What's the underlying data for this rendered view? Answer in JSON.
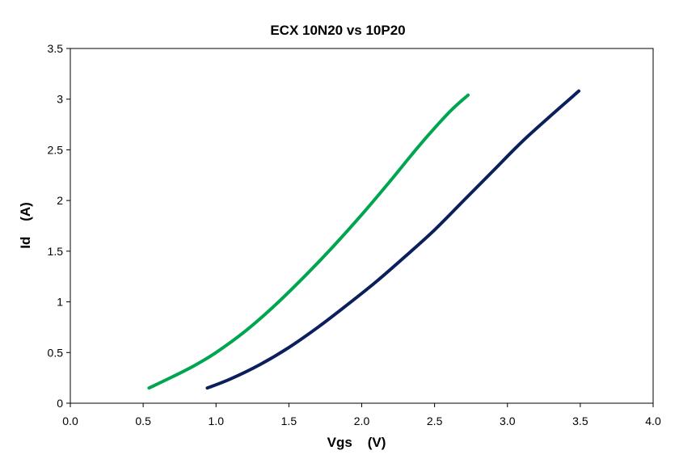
{
  "chart_data": {
    "type": "line",
    "title": "ECX 10N20 vs 10P20",
    "xlabel": "Vgs    (V)",
    "ylabel": "Id    (A)",
    "xlim": [
      0,
      4
    ],
    "ylim": [
      0,
      3.5
    ],
    "xticks": [
      0,
      0.5,
      1,
      1.5,
      2,
      2.5,
      3,
      3.5,
      4
    ],
    "xtick_labels": [
      "0.0",
      "0.5",
      "1.0",
      "1.5",
      "2.0",
      "2.5",
      "3.0",
      "3.5",
      "4.0"
    ],
    "yticks": [
      0,
      0.5,
      1,
      1.5,
      2,
      2.5,
      3,
      3.5
    ],
    "ytick_labels": [
      "0",
      "0.5",
      "1",
      "1.5",
      "2",
      "2.5",
      "3",
      "3.5"
    ],
    "grid": false,
    "legend": "none",
    "series": [
      {
        "color": "#00a550",
        "x": [
          0.54,
          0.7,
          0.85,
          1.0,
          1.2,
          1.4,
          1.6,
          1.8,
          2.0,
          2.2,
          2.4,
          2.6,
          2.73
        ],
        "y": [
          0.15,
          0.26,
          0.37,
          0.5,
          0.71,
          0.96,
          1.24,
          1.54,
          1.86,
          2.2,
          2.55,
          2.87,
          3.04
        ]
      },
      {
        "color": "#0a1f5c",
        "x": [
          0.94,
          1.1,
          1.3,
          1.5,
          1.7,
          1.9,
          2.1,
          2.3,
          2.5,
          2.7,
          2.9,
          3.1,
          3.3,
          3.49
        ],
        "y": [
          0.15,
          0.24,
          0.38,
          0.55,
          0.75,
          0.97,
          1.2,
          1.45,
          1.71,
          2.0,
          2.29,
          2.58,
          2.84,
          3.08
        ]
      }
    ]
  }
}
